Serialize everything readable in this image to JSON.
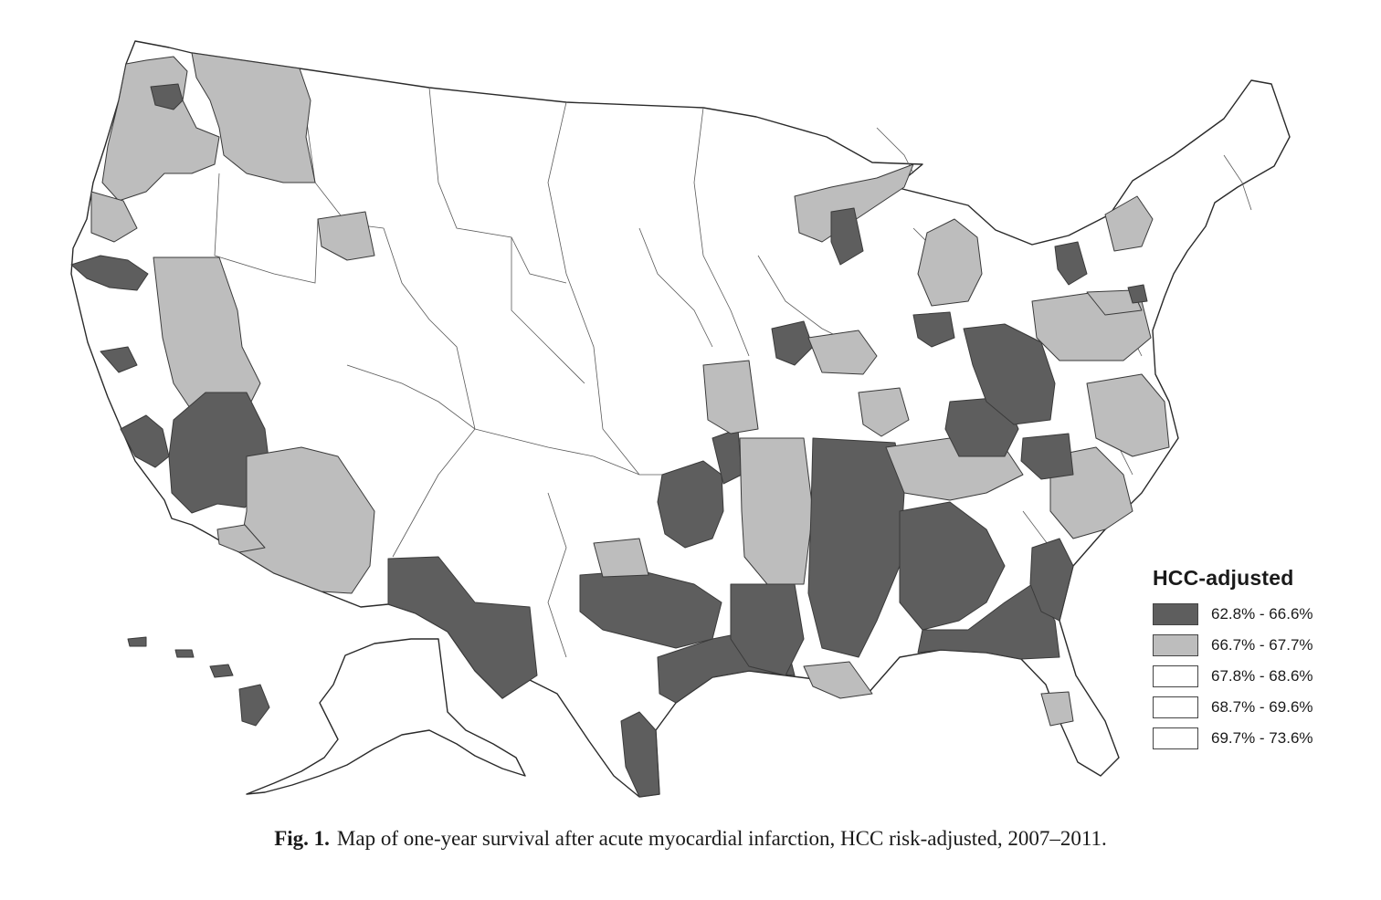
{
  "figure": {
    "caption_label": "Fig. 1.",
    "caption_text": "Map of one-year survival after acute myocardial infarction, HCC risk-adjusted, 2007–2011."
  },
  "legend": {
    "title": "HCC-adjusted",
    "classes": [
      {
        "label": "62.8% - 66.6%",
        "color": "#5e5e5e"
      },
      {
        "label": "66.7% - 67.7%",
        "color": "#bdbdbd"
      },
      {
        "label": "67.8% - 68.6%",
        "color": "#ffffff"
      },
      {
        "label": "68.7% - 69.6%",
        "color": "#ffffff"
      },
      {
        "label": "69.7% - 73.6%",
        "color": "#ffffff"
      }
    ]
  },
  "map": {
    "regions": [
      {
        "name": "western-washington",
        "class": 1
      },
      {
        "name": "seattle-area",
        "class": 0
      },
      {
        "name": "eastern-washington",
        "class": 1
      },
      {
        "name": "oregon-coast",
        "class": 1
      },
      {
        "name": "northern-california-coast",
        "class": 0
      },
      {
        "name": "sacramento",
        "class": 0
      },
      {
        "name": "nevada-great-basin",
        "class": 1
      },
      {
        "name": "central-valley",
        "class": 0
      },
      {
        "name": "sierra-nevada",
        "class": 0
      },
      {
        "name": "southern-nevada-arizona",
        "class": 1
      },
      {
        "name": "southwest-arizona",
        "class": 1
      },
      {
        "name": "idaho-east",
        "class": 1
      },
      {
        "name": "west-texas",
        "class": 0
      },
      {
        "name": "texas-gulf-coast",
        "class": 0
      },
      {
        "name": "south-texas-coast",
        "class": 0
      },
      {
        "name": "dallas-central-texas",
        "class": 0
      },
      {
        "name": "ozarks",
        "class": 0
      },
      {
        "name": "ozarks-north",
        "class": 0
      },
      {
        "name": "oklahoma-east",
        "class": 1
      },
      {
        "name": "arkansas-mid",
        "class": 1
      },
      {
        "name": "iowa-missouri",
        "class": 1
      },
      {
        "name": "mississippi-delta",
        "class": 0
      },
      {
        "name": "louisiana",
        "class": 0
      },
      {
        "name": "louisiana-south",
        "class": 1
      },
      {
        "name": "alabama-georgia",
        "class": 0
      },
      {
        "name": "south-georgia",
        "class": 0
      },
      {
        "name": "florida-north",
        "class": 0
      },
      {
        "name": "central-florida",
        "class": 1
      },
      {
        "name": "tennessee",
        "class": 1
      },
      {
        "name": "kentucky-west-virginia",
        "class": 0
      },
      {
        "name": "ohio-east",
        "class": 0
      },
      {
        "name": "carolinas",
        "class": 1
      },
      {
        "name": "virginia-east",
        "class": 1
      },
      {
        "name": "central-carolinas",
        "class": 0
      },
      {
        "name": "pennsylvania-ny",
        "class": 1
      },
      {
        "name": "northern-michigan",
        "class": 1
      },
      {
        "name": "wisconsin-north",
        "class": 0
      },
      {
        "name": "michigan-lower",
        "class": 1
      },
      {
        "name": "detroit-ohio",
        "class": 0
      },
      {
        "name": "northern-illinois",
        "class": 0
      },
      {
        "name": "northern-new-york",
        "class": 0
      },
      {
        "name": "new-england",
        "class": 1
      },
      {
        "name": "vermont-nh",
        "class": 1
      },
      {
        "name": "maine-coast",
        "class": 0
      },
      {
        "name": "illinois-indiana",
        "class": 1
      },
      {
        "name": "missouri-south",
        "class": 1
      },
      {
        "name": "hawaii-big-island",
        "class": 0
      },
      {
        "name": "hawaii-oahu",
        "class": 0
      }
    ]
  }
}
